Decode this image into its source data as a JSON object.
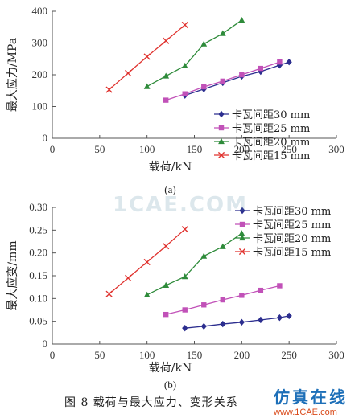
{
  "caption": "图 8   载荷与最大应力、变形关系",
  "watermark": {
    "center_text": "1CAE.COM",
    "brand_cn": "仿真在线",
    "brand_url": "www.1CAE.com"
  },
  "colors": {
    "s30": "#2c2e8f",
    "s25": "#c151b8",
    "s20": "#2e8b3a",
    "s15": "#e0332f"
  },
  "chart_data": [
    {
      "type": "line",
      "panel_label": "(a)",
      "xlabel": "载荷/kN",
      "ylabel": "最大应力/MPa",
      "xlim": [
        0,
        300
      ],
      "ylim": [
        0,
        400
      ],
      "xticks": [
        0,
        50,
        100,
        150,
        200,
        250,
        300
      ],
      "yticks": [
        0,
        100,
        200,
        300,
        400
      ],
      "legend_position": "bottom-right",
      "series": [
        {
          "name": "卡瓦间距30 mm",
          "marker": "diamond",
          "x": [
            140,
            160,
            180,
            200,
            220,
            240,
            250
          ],
          "y": [
            135,
            155,
            175,
            195,
            210,
            230,
            240
          ]
        },
        {
          "name": "卡瓦间距25 mm",
          "marker": "square",
          "x": [
            120,
            140,
            160,
            180,
            200,
            220,
            240
          ],
          "y": [
            120,
            140,
            162,
            180,
            200,
            220,
            240
          ]
        },
        {
          "name": "卡瓦间距20 mm",
          "marker": "triangle",
          "x": [
            100,
            120,
            140,
            160,
            180,
            200
          ],
          "y": [
            163,
            196,
            228,
            297,
            330,
            372
          ]
        },
        {
          "name": "卡瓦间距15 mm",
          "marker": "x",
          "x": [
            60,
            80,
            100,
            120,
            140
          ],
          "y": [
            153,
            205,
            257,
            307,
            357
          ]
        }
      ]
    },
    {
      "type": "line",
      "panel_label": "(b)",
      "xlabel": "载荷/kN",
      "ylabel": "最大应变/mm",
      "xlim": [
        0,
        300
      ],
      "ylim": [
        0,
        0.3
      ],
      "xticks": [
        0,
        50,
        100,
        150,
        200,
        250,
        300
      ],
      "yticks": [
        "0",
        "0.05",
        "0.10",
        "0.15",
        "0.20",
        "0.25",
        "0.30"
      ],
      "legend_position": "top-right",
      "series": [
        {
          "name": "卡瓦间距30 mm",
          "marker": "diamond",
          "x": [
            140,
            160,
            180,
            200,
            220,
            240,
            250
          ],
          "y": [
            0.035,
            0.039,
            0.044,
            0.048,
            0.053,
            0.058,
            0.062
          ]
        },
        {
          "name": "卡瓦间距25 mm",
          "marker": "square",
          "x": [
            120,
            140,
            160,
            180,
            200,
            220,
            240
          ],
          "y": [
            0.065,
            0.075,
            0.086,
            0.097,
            0.107,
            0.118,
            0.128
          ]
        },
        {
          "name": "卡瓦间距20 mm",
          "marker": "triangle",
          "x": [
            100,
            120,
            140,
            160,
            180,
            200
          ],
          "y": [
            0.108,
            0.129,
            0.148,
            0.193,
            0.214,
            0.243
          ]
        },
        {
          "name": "卡瓦间距15 mm",
          "marker": "x",
          "x": [
            60,
            80,
            100,
            120,
            140
          ],
          "y": [
            0.11,
            0.145,
            0.18,
            0.215,
            0.252
          ]
        }
      ]
    }
  ]
}
